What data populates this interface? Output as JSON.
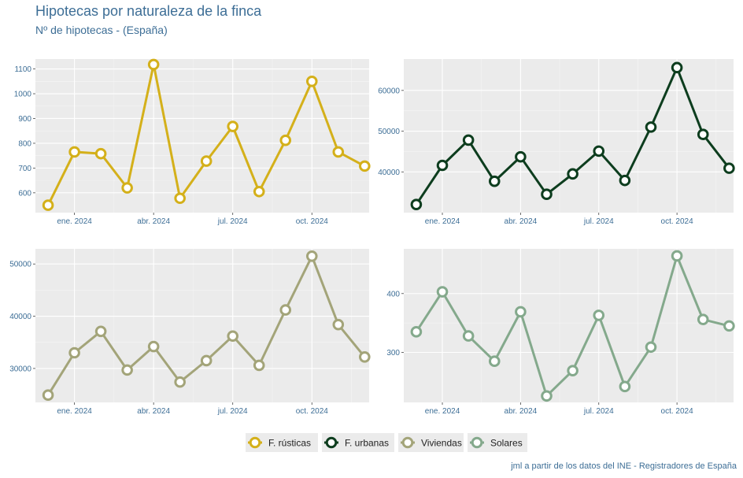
{
  "title": "Hipotecas por naturaleza de la finca",
  "subtitle": "Nº de hipotecas - (España)",
  "caption": "jml a partir de los datos del INE - Registradores de España",
  "chart_data": [
    {
      "type": "line",
      "series_name": "F. rústicas",
      "color": "#d4b01a",
      "x": [
        "2023-12",
        "2024-01",
        "2024-02",
        "2024-03",
        "2024-04",
        "2024-05",
        "2024-06",
        "2024-07",
        "2024-08",
        "2024-09",
        "2024-10",
        "2024-11",
        "2024-12"
      ],
      "values": [
        550,
        765,
        758,
        620,
        1118,
        578,
        728,
        868,
        605,
        812,
        1050,
        765,
        708
      ],
      "ylim": [
        520,
        1140
      ],
      "yticks": [
        600,
        700,
        800,
        900,
        1000,
        1100
      ],
      "ytick_labels": [
        "600",
        "700",
        "800",
        "900",
        "1000",
        "1100"
      ],
      "xtick_labels": [
        "ene. 2024",
        "abr. 2024",
        "jul. 2024",
        "oct. 2024"
      ],
      "xtick_index": [
        1,
        4,
        7,
        10
      ]
    },
    {
      "type": "line",
      "series_name": "F. urbanas",
      "color": "#0d3d1e",
      "x": [
        "2023-12",
        "2024-01",
        "2024-02",
        "2024-03",
        "2024-04",
        "2024-05",
        "2024-06",
        "2024-07",
        "2024-08",
        "2024-09",
        "2024-10",
        "2024-11",
        "2024-12"
      ],
      "values": [
        32000,
        41600,
        47800,
        37700,
        43700,
        34500,
        39500,
        45100,
        37900,
        51000,
        65600,
        49200,
        40900
      ],
      "ylim": [
        30000,
        67700
      ],
      "yticks": [
        40000,
        50000,
        60000
      ],
      "ytick_labels": [
        "40000",
        "50000",
        "60000"
      ],
      "xtick_labels": [
        "ene. 2024",
        "abr. 2024",
        "jul. 2024",
        "oct. 2024"
      ],
      "xtick_index": [
        1,
        4,
        7,
        10
      ]
    },
    {
      "type": "line",
      "series_name": "Viviendas",
      "color": "#a3a479",
      "x": [
        "2023-12",
        "2024-01",
        "2024-02",
        "2024-03",
        "2024-04",
        "2024-05",
        "2024-06",
        "2024-07",
        "2024-08",
        "2024-09",
        "2024-10",
        "2024-11",
        "2024-12"
      ],
      "values": [
        24900,
        33000,
        37100,
        29700,
        34200,
        27400,
        31500,
        36200,
        30600,
        41200,
        51500,
        38400,
        32200
      ],
      "ylim": [
        23500,
        52900
      ],
      "yticks": [
        30000,
        40000,
        50000
      ],
      "ytick_labels": [
        "30000",
        "40000",
        "50000"
      ],
      "xtick_labels": [
        "ene. 2024",
        "abr. 2024",
        "jul. 2024",
        "oct. 2024"
      ],
      "xtick_index": [
        1,
        4,
        7,
        10
      ]
    },
    {
      "type": "line",
      "series_name": "Solares",
      "color": "#84a98c",
      "x": [
        "2023-12",
        "2024-01",
        "2024-02",
        "2024-03",
        "2024-04",
        "2024-05",
        "2024-06",
        "2024-07",
        "2024-08",
        "2024-09",
        "2024-10",
        "2024-11",
        "2024-12"
      ],
      "values": [
        335,
        403,
        328,
        285,
        369,
        226,
        269,
        363,
        242,
        309,
        464,
        356,
        345
      ],
      "ylim": [
        215,
        476
      ],
      "yticks": [
        300,
        400
      ],
      "ytick_labels": [
        "300",
        "400"
      ],
      "xtick_labels": [
        "ene. 2024",
        "abr. 2024",
        "jul. 2024",
        "oct. 2024"
      ],
      "xtick_index": [
        1,
        4,
        7,
        10
      ]
    }
  ],
  "legend": {
    "position": "bottom",
    "items": [
      {
        "label": "F. rústicas",
        "color": "#d4b01a"
      },
      {
        "label": "F. urbanas",
        "color": "#0d3d1e"
      },
      {
        "label": "Viviendas",
        "color": "#a3a479"
      },
      {
        "label": "Solares",
        "color": "#84a98c"
      }
    ]
  }
}
